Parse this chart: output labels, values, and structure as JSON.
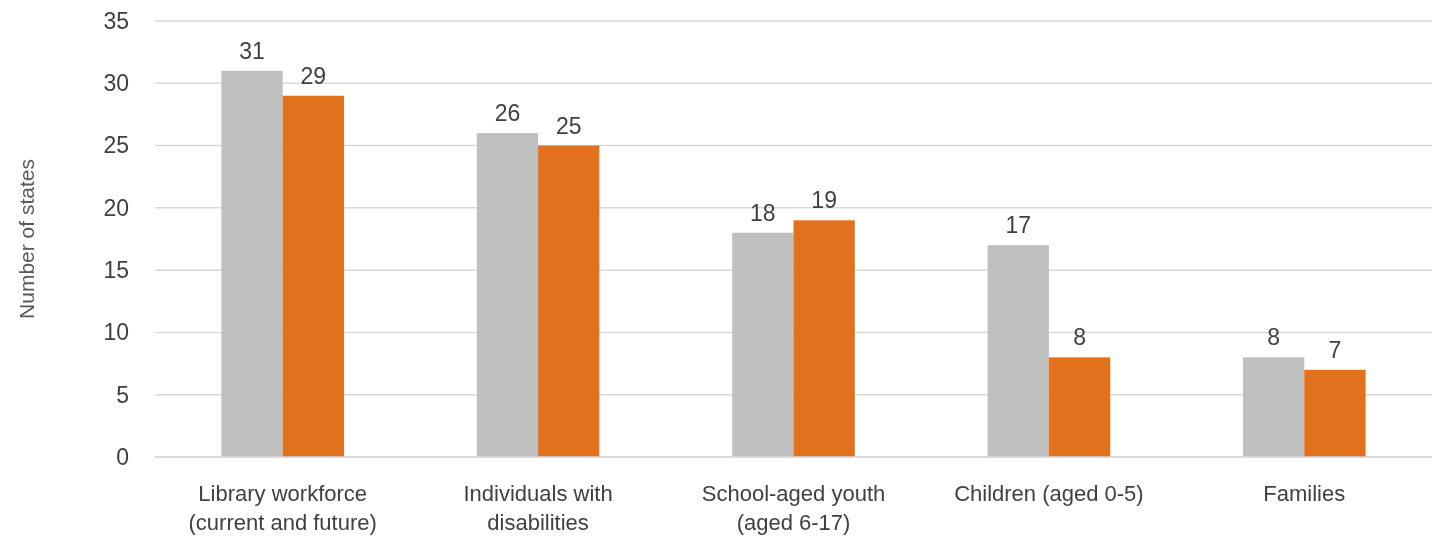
{
  "chart_data": {
    "type": "bar",
    "ylabel": "Number of states",
    "categories": [
      "Library workforce (current and future)",
      "Individuals with disabilities",
      "School-aged youth (aged 6-17)",
      "Children (aged 0-5)",
      "Families"
    ],
    "series": [
      {
        "color": "#bfbfbf",
        "values": [
          31,
          26,
          18,
          17,
          8
        ]
      },
      {
        "color": "#e2711d",
        "values": [
          29,
          25,
          19,
          8,
          7
        ]
      }
    ],
    "ylim": [
      0,
      35
    ],
    "yticks": [
      0,
      5,
      10,
      15,
      20,
      25,
      30,
      35
    ],
    "grid": "y",
    "data_labels": true
  }
}
